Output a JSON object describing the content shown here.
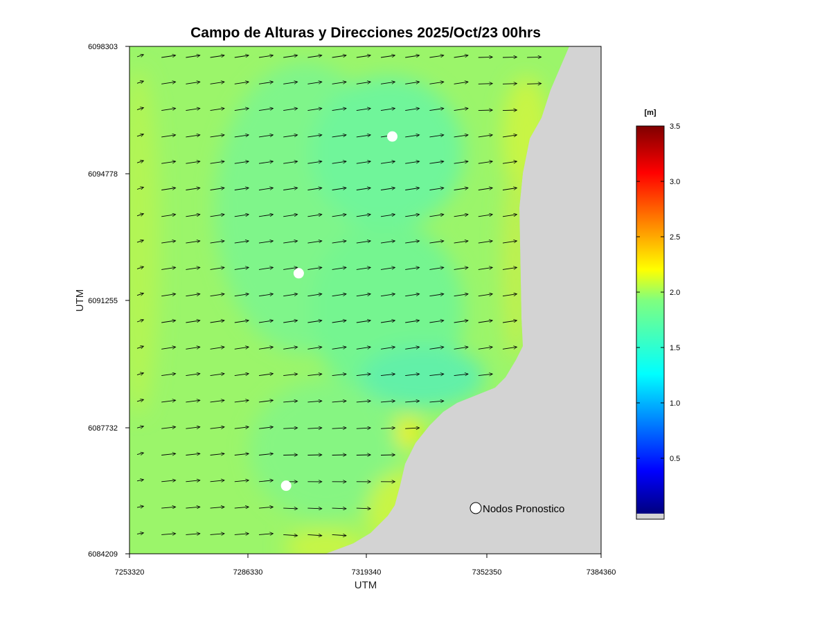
{
  "chart_data": {
    "type": "heatmap",
    "title": "Campo de Alturas y Direcciones 2025/Oct/23  00hrs",
    "xlabel": "UTM",
    "ylabel": "UTM",
    "x_ticks": [
      "7253320",
      "7286330",
      "7319340",
      "7352350",
      "7384360"
    ],
    "y_ticks": [
      "6098303",
      "6094778",
      "6091255",
      "6087732",
      "6084209"
    ],
    "xlim": [
      7253320,
      7384360
    ],
    "ylim": [
      6084209,
      6098303
    ],
    "colorbar": {
      "unit": "[m]",
      "range": [
        0,
        3.5
      ],
      "ticks": [
        "0.5",
        "1.0",
        "1.5",
        "2.0",
        "2.5",
        "3.0",
        "3.5"
      ],
      "land_color": "#d3d3d3"
    },
    "field": {
      "description_values_m": "Significant wave height ~1.7–2.1 m over sea; higher (~2.2) near coast, lower (~1.6) in the central band",
      "typical_height_m": 1.8
    },
    "arrows": {
      "direction": "toward east, slightly south (WNW swell)",
      "color": "#000000"
    },
    "nodes": [
      {
        "x": 7326340,
        "y": 6095800
      },
      {
        "x": 7300340,
        "y": 6092000
      },
      {
        "x": 7296840,
        "y": 6086100
      }
    ],
    "legend": {
      "label": "Nodos Pronostico",
      "placement": "bottom-right"
    }
  }
}
